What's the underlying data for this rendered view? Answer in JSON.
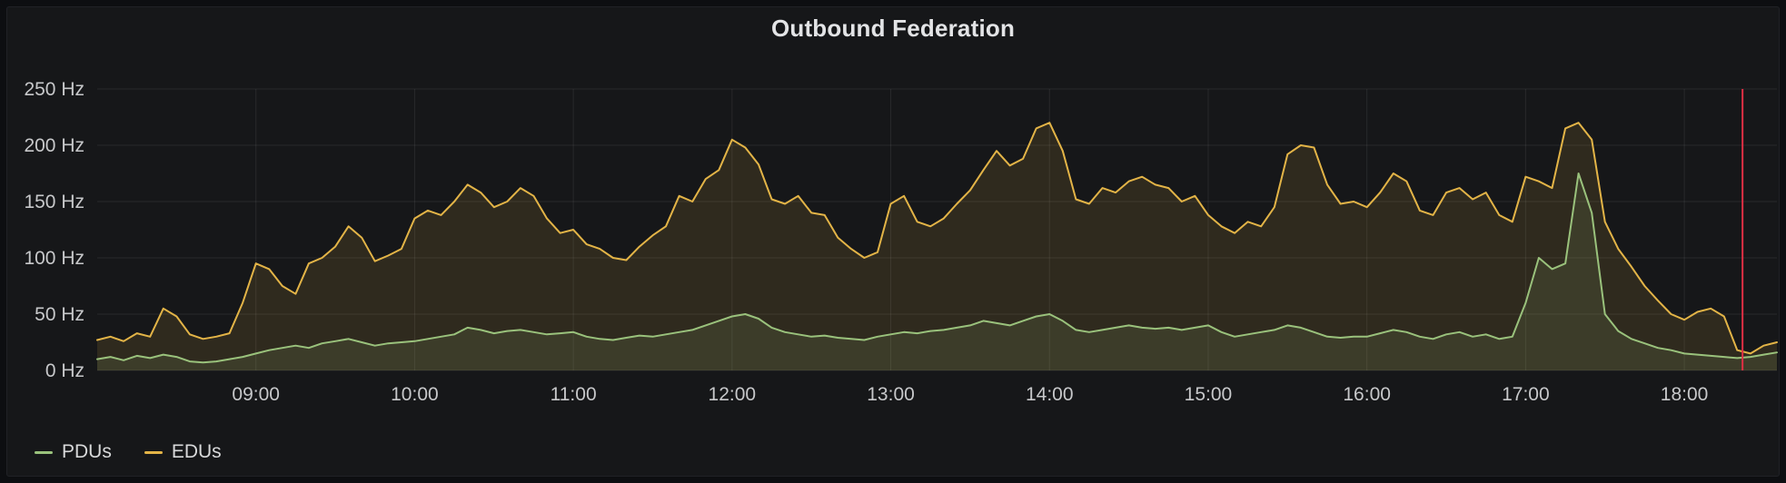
{
  "panel": {
    "title": "Outbound Federation"
  },
  "legend": {
    "items": [
      {
        "label": "PDUs",
        "color": "#9ac27c"
      },
      {
        "label": "EDUs",
        "color": "#e3b447"
      }
    ]
  },
  "axis": {
    "text_color": "#c7c8ca",
    "grid_color": "rgba(255,255,255,0.08)"
  },
  "chart_data": {
    "type": "area",
    "title": "Outbound Federation",
    "unit": "Hz",
    "x_unit": "minutes since 08:00",
    "x_range": [
      0,
      635
    ],
    "x_step": 5,
    "ylim": [
      0,
      250
    ],
    "grid": true,
    "legend_position": "bottom-left",
    "y_ticks": [
      {
        "value": 0,
        "label": "0 Hz"
      },
      {
        "value": 50,
        "label": "50 Hz"
      },
      {
        "value": 100,
        "label": "100 Hz"
      },
      {
        "value": 150,
        "label": "150 Hz"
      },
      {
        "value": 200,
        "label": "200 Hz"
      },
      {
        "value": 250,
        "label": "250 Hz"
      }
    ],
    "x_ticks": [
      {
        "value": 60,
        "label": "09:00"
      },
      {
        "value": 120,
        "label": "10:00"
      },
      {
        "value": 180,
        "label": "11:00"
      },
      {
        "value": 240,
        "label": "12:00"
      },
      {
        "value": 300,
        "label": "13:00"
      },
      {
        "value": 360,
        "label": "14:00"
      },
      {
        "value": 420,
        "label": "15:00"
      },
      {
        "value": 480,
        "label": "16:00"
      },
      {
        "value": 540,
        "label": "17:00"
      },
      {
        "value": 600,
        "label": "18:00"
      }
    ],
    "series": [
      {
        "name": "PDUs",
        "color": "#9ac27c",
        "fill_alpha": 0.12,
        "values": [
          10,
          12,
          9,
          13,
          11,
          14,
          12,
          8,
          7,
          8,
          10,
          12,
          15,
          18,
          20,
          22,
          20,
          24,
          26,
          28,
          25,
          22,
          24,
          25,
          26,
          28,
          30,
          32,
          38,
          36,
          33,
          35,
          36,
          34,
          32,
          33,
          34,
          30,
          28,
          27,
          29,
          31,
          30,
          32,
          34,
          36,
          40,
          44,
          48,
          50,
          46,
          38,
          34,
          32,
          30,
          31,
          29,
          28,
          27,
          30,
          32,
          34,
          33,
          35,
          36,
          38,
          40,
          44,
          42,
          40,
          44,
          48,
          50,
          44,
          36,
          34,
          36,
          38,
          40,
          38,
          37,
          38,
          36,
          38,
          40,
          34,
          30,
          32,
          34,
          36,
          40,
          38,
          34,
          30,
          29,
          30,
          30,
          33,
          36,
          34,
          30,
          28,
          32,
          34,
          30,
          32,
          28,
          30,
          60,
          100,
          90,
          95,
          175,
          140,
          50,
          35,
          28,
          24,
          20,
          18,
          15,
          14,
          13,
          12,
          11,
          12,
          14,
          16
        ]
      },
      {
        "name": "EDUs",
        "color": "#e3b447",
        "fill_alpha": 0.12,
        "values": [
          27,
          30,
          26,
          33,
          30,
          55,
          48,
          32,
          28,
          30,
          33,
          60,
          95,
          90,
          75,
          68,
          95,
          100,
          110,
          128,
          118,
          97,
          102,
          108,
          135,
          142,
          138,
          150,
          165,
          158,
          145,
          150,
          162,
          155,
          135,
          122,
          125,
          112,
          108,
          100,
          98,
          110,
          120,
          128,
          155,
          150,
          170,
          178,
          205,
          198,
          183,
          152,
          148,
          155,
          140,
          138,
          118,
          108,
          100,
          105,
          148,
          155,
          132,
          128,
          135,
          148,
          160,
          178,
          195,
          182,
          188,
          215,
          220,
          195,
          152,
          148,
          162,
          158,
          168,
          172,
          165,
          162,
          150,
          155,
          138,
          128,
          122,
          132,
          128,
          145,
          192,
          200,
          198,
          165,
          148,
          150,
          145,
          158,
          175,
          168,
          142,
          138,
          158,
          162,
          152,
          158,
          138,
          132,
          172,
          168,
          162,
          215,
          220,
          205,
          132,
          108,
          92,
          75,
          62,
          50,
          45,
          52,
          55,
          48,
          18,
          15,
          22,
          25
        ]
      }
    ],
    "annotation": {
      "type": "vertical-line",
      "x": 622,
      "color": "#e02f44"
    }
  }
}
